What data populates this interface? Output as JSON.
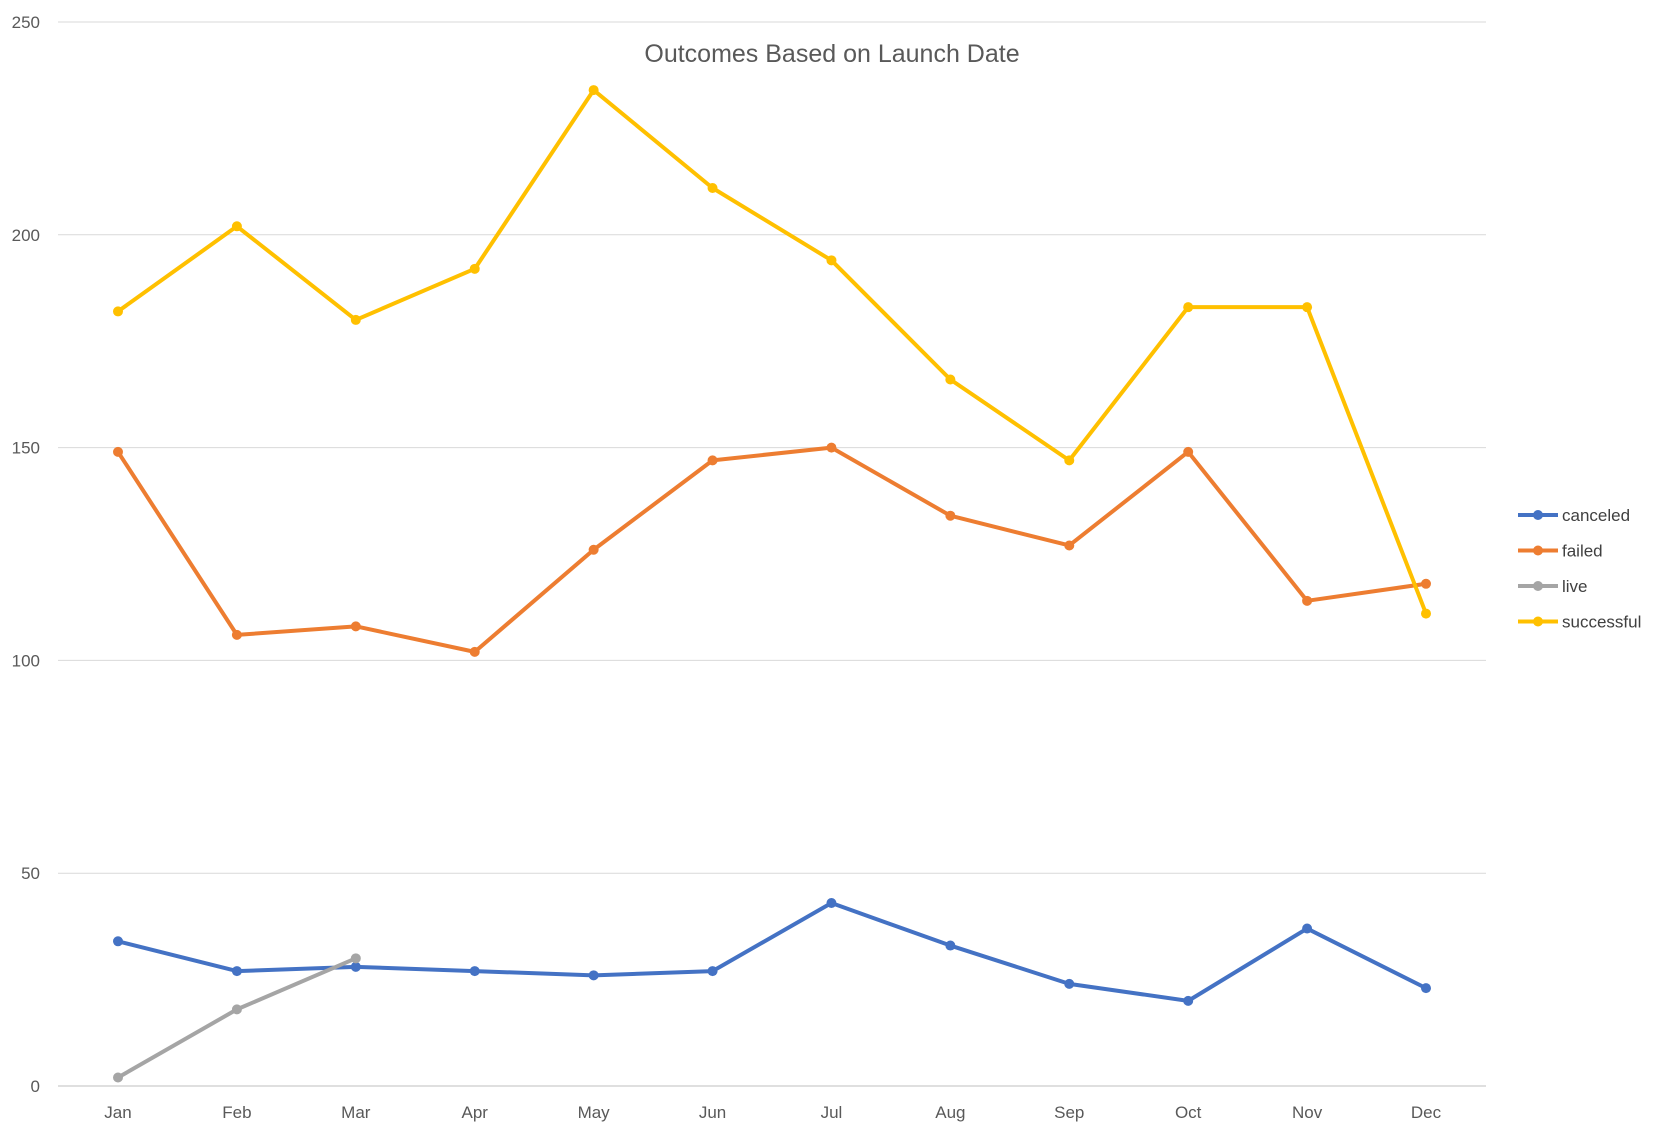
{
  "chart_data": {
    "type": "line",
    "title": "Outcomes Based on Launch Date",
    "xlabel": "",
    "ylabel": "",
    "categories": [
      "Jan",
      "Feb",
      "Mar",
      "Apr",
      "May",
      "Jun",
      "Jul",
      "Aug",
      "Sep",
      "Oct",
      "Nov",
      "Dec"
    ],
    "ylim": [
      0,
      250
    ],
    "yticks": [
      "0",
      "50",
      "100",
      "150",
      "200",
      "250"
    ],
    "grid": "horizontal",
    "legend_position": "right",
    "series": [
      {
        "name": "canceled",
        "color": "#4472C4",
        "values": [
          34,
          27,
          28,
          27,
          26,
          27,
          43,
          33,
          24,
          20,
          37,
          23
        ]
      },
      {
        "name": "failed",
        "color": "#ED7D31",
        "values": [
          149,
          106,
          108,
          102,
          126,
          147,
          150,
          134,
          127,
          149,
          114,
          118
        ]
      },
      {
        "name": "live",
        "color": "#A5A5A5",
        "values": [
          2,
          18,
          30,
          null,
          null,
          null,
          null,
          null,
          null,
          null,
          null,
          null
        ]
      },
      {
        "name": "successful",
        "color": "#FFC000",
        "values": [
          182,
          202,
          180,
          192,
          234,
          211,
          194,
          166,
          147,
          183,
          183,
          111
        ]
      }
    ]
  }
}
